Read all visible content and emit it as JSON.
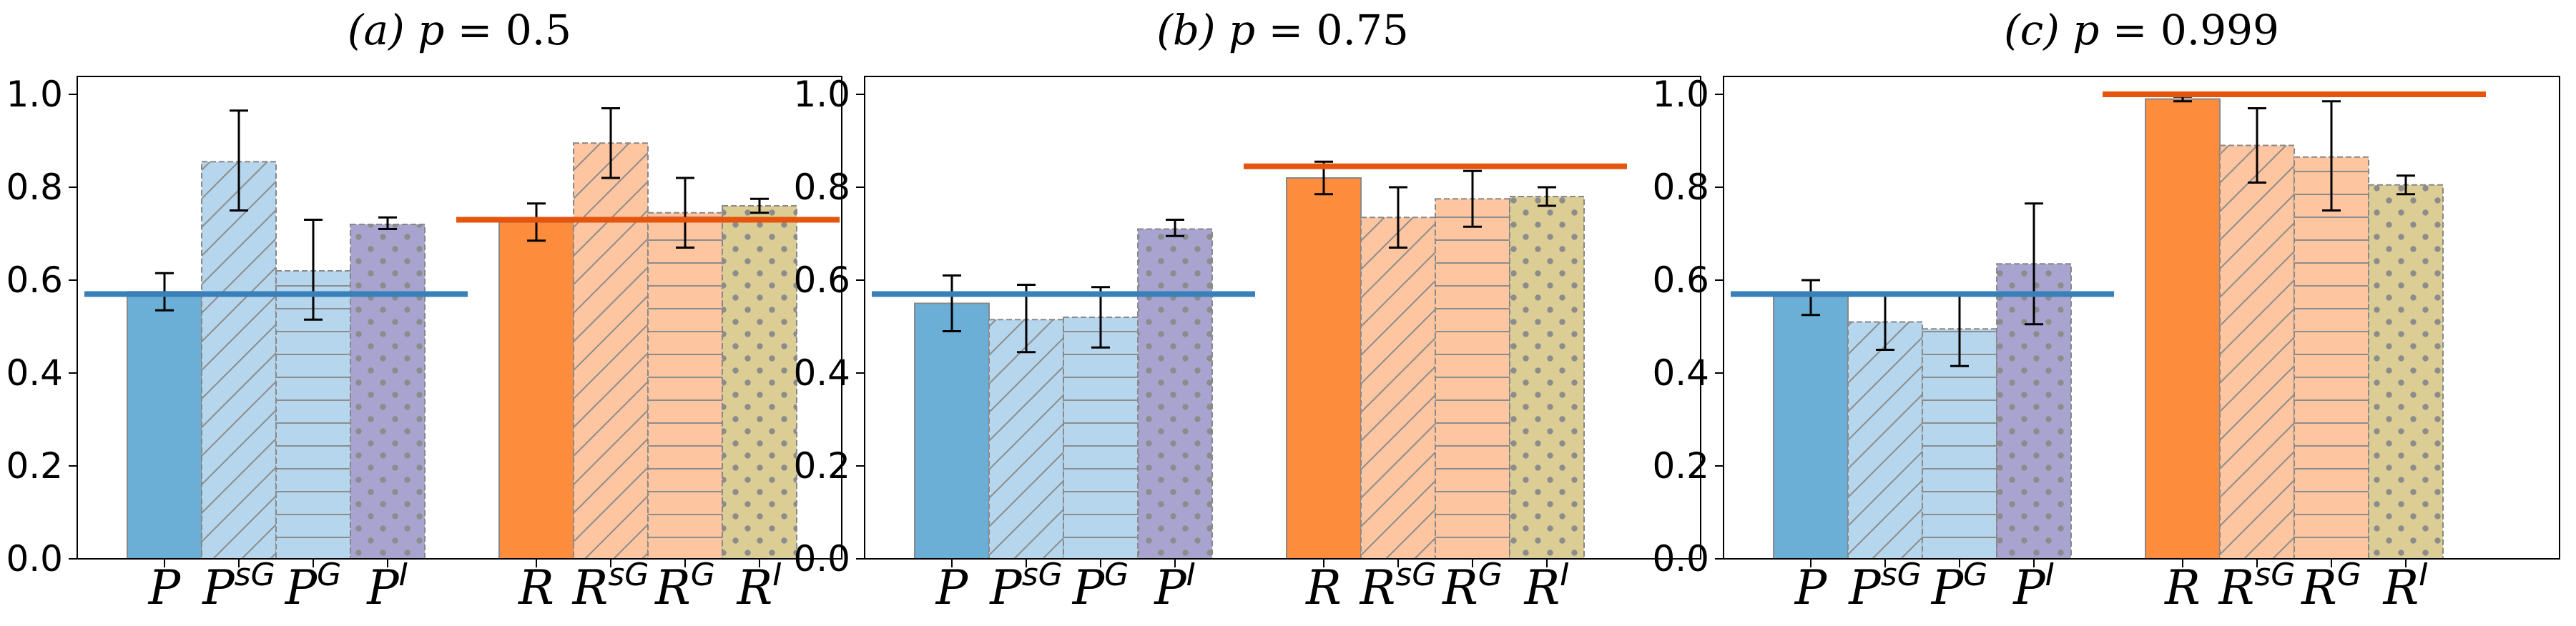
{
  "figure": {
    "colors": {
      "p_solid": "#6baed6",
      "p_light": "#b5d6ec",
      "p_indep": "#a8a3cf",
      "r_solid": "#fd8d3c",
      "r_light": "#fdc5a0",
      "r_indep": "#dccd95",
      "p_line": "#3a80b8",
      "r_line": "#e6550d",
      "bar_edge": "#888888",
      "hatch": "#8c8c8c"
    }
  },
  "chart_data": [
    {
      "type": "bar",
      "title": "(a) p = 0.5",
      "title_parts": {
        "prefix": "(a) ",
        "var": "p",
        "suffix": " = 0.5"
      },
      "ylim": [
        0,
        1.0
      ],
      "yticks": [
        "0.0",
        "0.2",
        "0.4",
        "0.6",
        "0.8",
        "1.0"
      ],
      "groups": [
        {
          "name": "P",
          "reference_line": 0.57,
          "bars": [
            {
              "label": "P",
              "sup": "",
              "value": 0.575,
              "err_low": 0.535,
              "err_high": 0.615,
              "style": "solid"
            },
            {
              "label": "P",
              "sup": "sG",
              "value": 0.855,
              "err_low": 0.75,
              "err_high": 0.965,
              "style": "diag"
            },
            {
              "label": "P",
              "sup": "G",
              "value": 0.62,
              "err_low": 0.515,
              "err_high": 0.73,
              "style": "horiz"
            },
            {
              "label": "P",
              "sup": "I",
              "value": 0.72,
              "err_low": 0.71,
              "err_high": 0.735,
              "style": "dots"
            }
          ]
        },
        {
          "name": "R",
          "reference_line": 0.73,
          "bars": [
            {
              "label": "R",
              "sup": "",
              "value": 0.725,
              "err_low": 0.685,
              "err_high": 0.765,
              "style": "solid"
            },
            {
              "label": "R",
              "sup": "sG",
              "value": 0.895,
              "err_low": 0.82,
              "err_high": 0.97,
              "style": "diag"
            },
            {
              "label": "R",
              "sup": "G",
              "value": 0.745,
              "err_low": 0.67,
              "err_high": 0.82,
              "style": "horiz"
            },
            {
              "label": "R",
              "sup": "I",
              "value": 0.76,
              "err_low": 0.745,
              "err_high": 0.775,
              "style": "dots"
            }
          ]
        }
      ]
    },
    {
      "type": "bar",
      "title": "(b) p = 0.75",
      "title_parts": {
        "prefix": "(b) ",
        "var": "p",
        "suffix": " = 0.75"
      },
      "ylim": [
        0,
        1.0
      ],
      "yticks": [
        "0.0",
        "0.2",
        "0.4",
        "0.6",
        "0.8",
        "1.0"
      ],
      "groups": [
        {
          "name": "P",
          "reference_line": 0.57,
          "bars": [
            {
              "label": "P",
              "sup": "",
              "value": 0.55,
              "err_low": 0.49,
              "err_high": 0.61,
              "style": "solid"
            },
            {
              "label": "P",
              "sup": "sG",
              "value": 0.515,
              "err_low": 0.445,
              "err_high": 0.59,
              "style": "diag"
            },
            {
              "label": "P",
              "sup": "G",
              "value": 0.52,
              "err_low": 0.455,
              "err_high": 0.585,
              "style": "horiz"
            },
            {
              "label": "P",
              "sup": "I",
              "value": 0.71,
              "err_low": 0.695,
              "err_high": 0.73,
              "style": "dots"
            }
          ]
        },
        {
          "name": "R",
          "reference_line": 0.845,
          "bars": [
            {
              "label": "R",
              "sup": "",
              "value": 0.82,
              "err_low": 0.785,
              "err_high": 0.855,
              "style": "solid"
            },
            {
              "label": "R",
              "sup": "sG",
              "value": 0.735,
              "err_low": 0.67,
              "err_high": 0.8,
              "style": "diag"
            },
            {
              "label": "R",
              "sup": "G",
              "value": 0.775,
              "err_low": 0.715,
              "err_high": 0.835,
              "style": "horiz"
            },
            {
              "label": "R",
              "sup": "I",
              "value": 0.78,
              "err_low": 0.76,
              "err_high": 0.8,
              "style": "dots"
            }
          ]
        }
      ]
    },
    {
      "type": "bar",
      "title": "(c) p = 0.999",
      "title_parts": {
        "prefix": "(c) ",
        "var": "p",
        "suffix": " = 0.999"
      },
      "ylim": [
        0,
        1.0
      ],
      "yticks": [
        "0.0",
        "0.2",
        "0.4",
        "0.6",
        "0.8",
        "1.0"
      ],
      "groups": [
        {
          "name": "P",
          "reference_line": 0.57,
          "bars": [
            {
              "label": "P",
              "sup": "",
              "value": 0.565,
              "err_low": 0.525,
              "err_high": 0.6,
              "style": "solid"
            },
            {
              "label": "P",
              "sup": "sG",
              "value": 0.51,
              "err_low": 0.45,
              "err_high": 0.57,
              "style": "diag"
            },
            {
              "label": "P",
              "sup": "G",
              "value": 0.495,
              "err_low": 0.415,
              "err_high": 0.57,
              "style": "horiz"
            },
            {
              "label": "P",
              "sup": "I",
              "value": 0.635,
              "err_low": 0.505,
              "err_high": 0.765,
              "style": "dots"
            }
          ]
        },
        {
          "name": "R",
          "reference_line": 1.0,
          "bars": [
            {
              "label": "R",
              "sup": "",
              "value": 0.99,
              "err_low": 0.985,
              "err_high": 0.995,
              "style": "solid"
            },
            {
              "label": "R",
              "sup": "sG",
              "value": 0.89,
              "err_low": 0.81,
              "err_high": 0.97,
              "style": "diag"
            },
            {
              "label": "R",
              "sup": "G",
              "value": 0.865,
              "err_low": 0.75,
              "err_high": 0.985,
              "style": "horiz"
            },
            {
              "label": "R",
              "sup": "I",
              "value": 0.805,
              "err_low": 0.785,
              "err_high": 0.825,
              "style": "dots"
            }
          ]
        }
      ]
    }
  ]
}
